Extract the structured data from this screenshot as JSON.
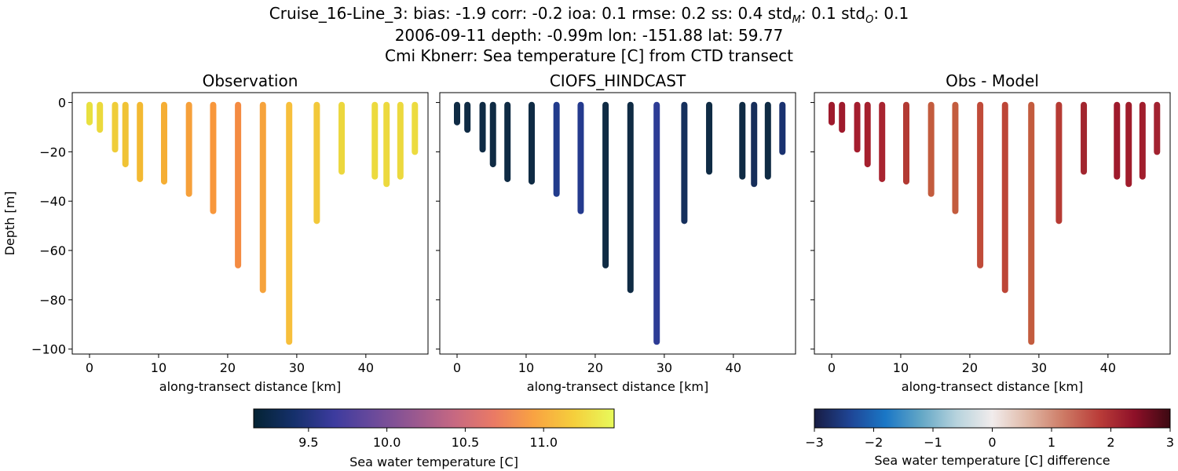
{
  "figure": {
    "title_line1": "Cruise_16-Line_3: bias: -1.9  corr: -0.2  ioa: 0.1  rmse: 0.2  ss: 0.4  std",
    "title_line1_sub_m": "M",
    "title_line1_mid": ": 0.1  std",
    "title_line1_sub_o": "O",
    "title_line1_end": ": 0.1",
    "title_line2": "2006-09-11 depth: -0.99m lon: -151.88 lat: 59.77",
    "title_line3": "Cmi Kbnerr: Sea temperature [C] from CTD transect"
  },
  "chart_data": {
    "type": "scatter",
    "shared": {
      "ylabel": "Depth [m]",
      "xlabel": "along-transect distance [km]",
      "xlim": [
        -2.5,
        49
      ],
      "ylim": [
        -102,
        4
      ],
      "xticks": [
        0,
        10,
        20,
        30,
        40
      ],
      "yticks": [
        0,
        -20,
        -40,
        -60,
        -80,
        -100
      ],
      "ytick_labels": [
        "0",
        "−20",
        "−40",
        "−60",
        "−80",
        "−100"
      ],
      "stations": [
        {
          "x": 0.0,
          "min_depth": -8
        },
        {
          "x": 1.5,
          "min_depth": -11
        },
        {
          "x": 3.7,
          "min_depth": -19
        },
        {
          "x": 5.2,
          "min_depth": -25
        },
        {
          "x": 7.3,
          "min_depth": -31
        },
        {
          "x": 10.8,
          "min_depth": -32
        },
        {
          "x": 14.4,
          "min_depth": -37
        },
        {
          "x": 17.9,
          "min_depth": -44
        },
        {
          "x": 21.5,
          "min_depth": -66
        },
        {
          "x": 25.1,
          "min_depth": -76
        },
        {
          "x": 28.9,
          "min_depth": -97
        },
        {
          "x": 32.9,
          "min_depth": -48
        },
        {
          "x": 36.5,
          "min_depth": -28
        },
        {
          "x": 41.3,
          "min_depth": -30
        },
        {
          "x": 43.0,
          "min_depth": -33
        },
        {
          "x": 45.0,
          "min_depth": -30
        },
        {
          "x": 47.1,
          "min_depth": -20
        }
      ]
    },
    "panels": [
      {
        "title": "Observation",
        "colormap": "thermal",
        "vmin": 9.15,
        "vmax": 11.45,
        "colors": [
          "#e8e03f",
          "#ebd93c",
          "#efcd39",
          "#f0c335",
          "#f3b932",
          "#f5ae34",
          "#f6a03a",
          "#f8973b",
          "#f48b42",
          "#f6a33c",
          "#f7bf3b",
          "#f2c83a",
          "#ecd73d",
          "#ecda3e",
          "#ecd93e",
          "#ecd93e",
          "#ecdb3f"
        ]
      },
      {
        "title": "CIOFS_HINDCAST",
        "colormap": "thermal",
        "vmin": 9.15,
        "vmax": 11.45,
        "colors": [
          "#0f2b44",
          "#0f2b44",
          "#0f2b44",
          "#0f2b44",
          "#0f2b44",
          "#0f2b44",
          "#213b8c",
          "#243a8e",
          "#0f2b44",
          "#0f2b44",
          "#2d3c95",
          "#152f5c",
          "#0f2b44",
          "#0f2b44",
          "#162e5a",
          "#0f2b44",
          "#1a3270"
        ]
      },
      {
        "title": "Obs - Model",
        "colormap": "balance",
        "vmin": -3,
        "vmax": 3,
        "colors": [
          "#9e1a2c",
          "#9e1a2c",
          "#a41d2e",
          "#a5202e",
          "#a82430",
          "#b23a33",
          "#c35c3e",
          "#c35c3e",
          "#c04b39",
          "#bd4637",
          "#c35c3e",
          "#b63b34",
          "#a2262f",
          "#9e1a2c",
          "#a01d2c",
          "#a11e2d",
          "#a22230"
        ]
      }
    ],
    "colorbars": [
      {
        "label": "Sea water temperature [C]",
        "colormap": "thermal",
        "vmin": 9.15,
        "vmax": 11.45,
        "ticks": [
          9.5,
          10.0,
          10.5,
          11.0
        ],
        "tick_labels": [
          "9.5",
          "10.0",
          "10.5",
          "11.0"
        ]
      },
      {
        "label": "Sea water temperature [C] difference",
        "colormap": "balance",
        "vmin": -3,
        "vmax": 3,
        "ticks": [
          -3,
          -2,
          -1,
          0,
          1,
          2,
          3
        ],
        "tick_labels": [
          "−3",
          "−2",
          "−1",
          "0",
          "1",
          "2",
          "3"
        ]
      }
    ],
    "colormaps": {
      "thermal": [
        "#042333",
        "#15306b",
        "#3c3b9e",
        "#6b4a9b",
        "#985890",
        "#c66882",
        "#ea7a65",
        "#f9a342",
        "#f5cf3c",
        "#e8fa5b"
      ],
      "balance": [
        "#181c43",
        "#1f4595",
        "#1a77c6",
        "#63a7c6",
        "#b7d3dd",
        "#f1ecec",
        "#e0b8a6",
        "#cd7a65",
        "#ba3d39",
        "#8e1028",
        "#3c0912"
      ]
    }
  }
}
